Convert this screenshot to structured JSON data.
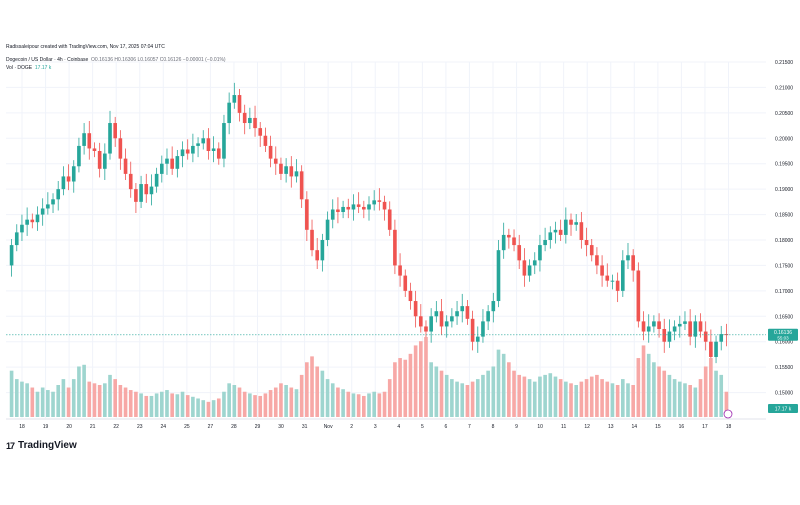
{
  "header": {
    "author_line": "Radissaleipour created with TradingView.com, Nov 17, 2025 07:04 UTC",
    "symbol_line": "Dogecoin / US Dollar · 4h · Coinbase",
    "ohlc": "O0.16136 H0.16306 L0.16057 C0.16126 −0.00001 (−0.01%)",
    "vol_label": "Vol · DOGE",
    "vol_value": "17.17 k"
  },
  "price_badge": "0.16136",
  "price_badge_sub": "55:03",
  "vol_badge": "17.17 k",
  "branding": {
    "logo_mark": "17",
    "logo_text": "TradingView"
  },
  "colors": {
    "up": "#26a69a",
    "down": "#ef5350",
    "up_vol": "#9ed5cf",
    "down_vol": "#f7a8a6",
    "grid": "#f0f3fa",
    "axis_text": "#131722"
  },
  "chart_data": {
    "type": "candlestick",
    "y_axis": {
      "min": 0.145,
      "max": 0.215,
      "ticks": [
        "0.21500",
        "0.21000",
        "0.20500",
        "0.20000",
        "0.19500",
        "0.19000",
        "0.18500",
        "0.18000",
        "0.17500",
        "0.17000",
        "0.16500",
        "0.16000",
        "0.15500",
        "0.15000"
      ]
    },
    "x_ticks": [
      "18",
      "19",
      "20",
      "21",
      "22",
      "23",
      "24",
      "25",
      "27",
      "28",
      "29",
      "30",
      "31",
      "Nov",
      "2",
      "3",
      "4",
      "5",
      "6",
      "7",
      "8",
      "9",
      "10",
      "11",
      "12",
      "13",
      "14",
      "15",
      "16",
      "17",
      "18"
    ],
    "last_price": 0.16136,
    "closes": [
      0.179,
      0.1815,
      0.183,
      0.184,
      0.1835,
      0.185,
      0.1862,
      0.187,
      0.188,
      0.19,
      0.1925,
      0.1915,
      0.1945,
      0.1985,
      0.201,
      0.198,
      0.1975,
      0.194,
      0.197,
      0.203,
      0.2,
      0.196,
      0.193,
      0.19,
      0.1875,
      0.191,
      0.189,
      0.1905,
      0.193,
      0.195,
      0.196,
      0.194,
      0.1965,
      0.1978,
      0.197,
      0.1985,
      0.199,
      0.2,
      0.1975,
      0.198,
      0.196,
      0.203,
      0.207,
      0.2085,
      0.205,
      0.203,
      0.204,
      0.202,
      0.2005,
      0.1985,
      0.196,
      0.195,
      0.193,
      0.1945,
      0.1925,
      0.1935,
      0.188,
      0.182,
      0.178,
      0.176,
      0.18,
      0.184,
      0.186,
      0.1855,
      0.1865,
      0.186,
      0.187,
      0.1865,
      0.186,
      0.187,
      0.1878,
      0.1875,
      0.186,
      0.182,
      0.175,
      0.173,
      0.17,
      0.168,
      0.165,
      0.163,
      0.162,
      0.165,
      0.166,
      0.163,
      0.164,
      0.165,
      0.166,
      0.167,
      0.1645,
      0.16,
      0.161,
      0.164,
      0.166,
      0.168,
      0.178,
      0.181,
      0.1805,
      0.179,
      0.176,
      0.173,
      0.175,
      0.176,
      0.179,
      0.18,
      0.1815,
      0.182,
      0.181,
      0.184,
      0.183,
      0.1835,
      0.18,
      0.179,
      0.177,
      0.175,
      0.173,
      0.172,
      0.172,
      0.17,
      0.176,
      0.177,
      0.174,
      0.164,
      0.162,
      0.163,
      0.164,
      0.1625,
      0.16,
      0.162,
      0.163,
      0.1635,
      0.164,
      0.161,
      0.164,
      0.162,
      0.16,
      0.157,
      0.16,
      0.1615,
      0.1613
    ],
    "volumes": [
      0.55,
      0.45,
      0.42,
      0.4,
      0.35,
      0.3,
      0.35,
      0.32,
      0.3,
      0.38,
      0.45,
      0.35,
      0.45,
      0.6,
      0.62,
      0.42,
      0.4,
      0.38,
      0.4,
      0.5,
      0.45,
      0.38,
      0.35,
      0.32,
      0.3,
      0.28,
      0.25,
      0.25,
      0.28,
      0.3,
      0.32,
      0.28,
      0.27,
      0.3,
      0.26,
      0.24,
      0.22,
      0.2,
      0.18,
      0.2,
      0.22,
      0.3,
      0.4,
      0.38,
      0.35,
      0.3,
      0.28,
      0.26,
      0.25,
      0.28,
      0.32,
      0.35,
      0.4,
      0.38,
      0.35,
      0.33,
      0.5,
      0.65,
      0.72,
      0.6,
      0.55,
      0.45,
      0.4,
      0.35,
      0.33,
      0.3,
      0.28,
      0.27,
      0.25,
      0.28,
      0.3,
      0.28,
      0.3,
      0.45,
      0.65,
      0.7,
      0.68,
      0.75,
      0.85,
      0.9,
      0.95,
      0.65,
      0.6,
      0.55,
      0.5,
      0.45,
      0.42,
      0.4,
      0.38,
      0.42,
      0.45,
      0.5,
      0.55,
      0.6,
      0.8,
      0.75,
      0.65,
      0.55,
      0.5,
      0.48,
      0.45,
      0.42,
      0.48,
      0.5,
      0.52,
      0.48,
      0.45,
      0.42,
      0.4,
      0.38,
      0.42,
      0.45,
      0.48,
      0.5,
      0.45,
      0.42,
      0.4,
      0.38,
      0.45,
      0.4,
      0.38,
      0.7,
      0.85,
      0.75,
      0.65,
      0.6,
      0.55,
      0.5,
      0.45,
      0.42,
      0.4,
      0.38,
      0.35,
      0.45,
      0.6,
      0.7,
      0.55,
      0.5,
      0.3
    ]
  }
}
